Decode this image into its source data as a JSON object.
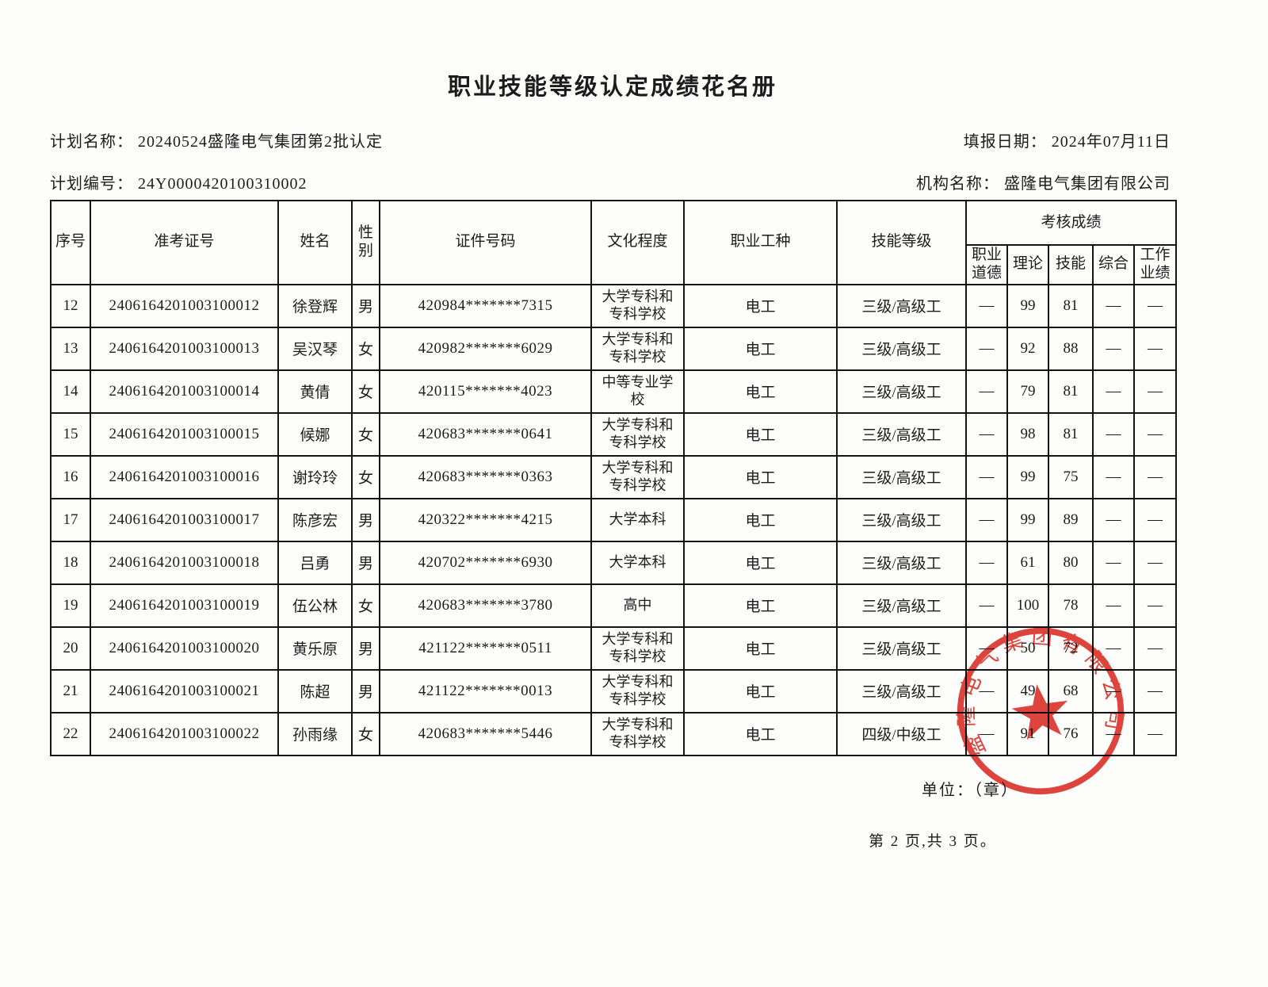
{
  "title": "职业技能等级认定成绩花名册",
  "meta": {
    "plan_name": "计划名称： 20240524盛隆电气集团第2批认定",
    "report_date": "填报日期： 2024年07月11日",
    "plan_no": "计划编号： 24Y0000420100310002",
    "org_name": "机构名称： 盛隆电气集团有限公司"
  },
  "table": {
    "columns": [
      "序号",
      "准考证号",
      "姓名",
      "性别",
      "证件号码",
      "文化程度",
      "职业工种",
      "技能等级"
    ],
    "score_group": "考核成绩",
    "score_columns": [
      "职业道德",
      "理论",
      "技能",
      "综合",
      "工作业绩"
    ],
    "rows": [
      [
        "12",
        "2406164201003100012",
        "徐登辉",
        "男",
        "420984*******7315",
        "大学专科和\n专科学校",
        "电工",
        "三级/高级工",
        "—",
        "99",
        "81",
        "—",
        "—"
      ],
      [
        "13",
        "2406164201003100013",
        "吴汉琴",
        "女",
        "420982*******6029",
        "大学专科和\n专科学校",
        "电工",
        "三级/高级工",
        "—",
        "92",
        "88",
        "—",
        "—"
      ],
      [
        "14",
        "2406164201003100014",
        "黄倩",
        "女",
        "420115*******4023",
        "中等专业学\n校",
        "电工",
        "三级/高级工",
        "—",
        "79",
        "81",
        "—",
        "—"
      ],
      [
        "15",
        "2406164201003100015",
        "候娜",
        "女",
        "420683*******0641",
        "大学专科和\n专科学校",
        "电工",
        "三级/高级工",
        "—",
        "98",
        "81",
        "—",
        "—"
      ],
      [
        "16",
        "2406164201003100016",
        "谢玲玲",
        "女",
        "420683*******0363",
        "大学专科和\n专科学校",
        "电工",
        "三级/高级工",
        "—",
        "99",
        "75",
        "—",
        "—"
      ],
      [
        "17",
        "2406164201003100017",
        "陈彦宏",
        "男",
        "420322*******4215",
        "大学本科",
        "电工",
        "三级/高级工",
        "—",
        "99",
        "89",
        "—",
        "—"
      ],
      [
        "18",
        "2406164201003100018",
        "吕勇",
        "男",
        "420702*******6930",
        "大学本科",
        "电工",
        "三级/高级工",
        "—",
        "61",
        "80",
        "—",
        "—"
      ],
      [
        "19",
        "2406164201003100019",
        "伍公林",
        "女",
        "420683*******3780",
        "高中",
        "电工",
        "三级/高级工",
        "—",
        "100",
        "78",
        "—",
        "—"
      ],
      [
        "20",
        "2406164201003100020",
        "黄乐原",
        "男",
        "421122*******0511",
        "大学专科和\n专科学校",
        "电工",
        "三级/高级工",
        "—",
        "50",
        "72",
        "—",
        "—"
      ],
      [
        "21",
        "2406164201003100021",
        "陈超",
        "男",
        "421122*******0013",
        "大学专科和\n专科学校",
        "电工",
        "三级/高级工",
        "—",
        "49",
        "68",
        "—",
        "—"
      ],
      [
        "22",
        "2406164201003100022",
        "孙雨缘",
        "女",
        "420683*******5446",
        "大学专科和\n专科学校",
        "电工",
        "四级/中级工",
        "—",
        "91",
        "76",
        "—",
        "—"
      ]
    ]
  },
  "footer": {
    "unit_label": "单位：（章）",
    "page_info": "第 2 页,共 3 页。"
  },
  "stamp": {
    "text": "盛隆电气集团有限公司",
    "color": "#d9281e"
  }
}
